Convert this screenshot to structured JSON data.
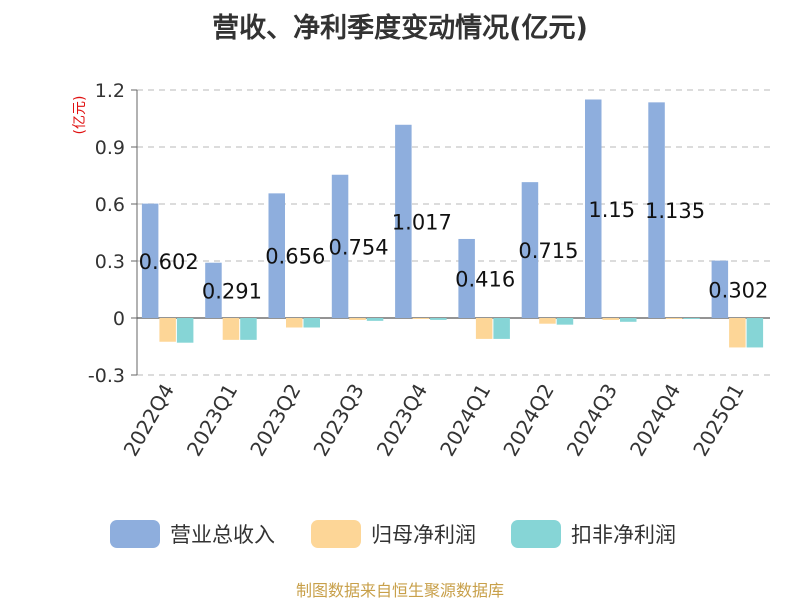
{
  "chart_data": {
    "type": "bar",
    "title": "营收、净利季度变动情况(亿元)",
    "ylabel": "(亿元)",
    "ylim": [
      -0.3,
      1.2
    ],
    "yticks": [
      "1.2",
      "0.9",
      "0.6",
      "0.3",
      "0",
      "-0.3"
    ],
    "ytick_values": [
      1.2,
      0.9,
      0.6,
      0.3,
      0,
      -0.3
    ],
    "categories": [
      "2022Q4",
      "2023Q1",
      "2023Q2",
      "2023Q3",
      "2023Q4",
      "2024Q1",
      "2024Q2",
      "2024Q3",
      "2024Q4",
      "2025Q1"
    ],
    "series": [
      {
        "name": "营业总收入",
        "color": "#8eaedd",
        "values": [
          0.602,
          0.291,
          0.656,
          0.754,
          1.017,
          0.416,
          0.715,
          1.15,
          1.135,
          0.302
        ],
        "labels": [
          "0.602",
          "0.291",
          "0.656",
          "0.754",
          "1.017",
          "0.416",
          "0.715",
          "1.15",
          "1.135",
          "0.302"
        ]
      },
      {
        "name": "归母净利润",
        "color": "#fdd697",
        "values": [
          -0.125,
          -0.115,
          -0.05,
          -0.01,
          -0.005,
          -0.11,
          -0.03,
          -0.01,
          -0.005,
          -0.155
        ]
      },
      {
        "name": "扣非净利润",
        "color": "#86d5d6",
        "values": [
          -0.13,
          -0.115,
          -0.05,
          -0.015,
          -0.01,
          -0.11,
          -0.035,
          -0.02,
          -0.005,
          -0.155
        ]
      }
    ],
    "grid": true,
    "legend_position": "bottom"
  },
  "source": "制图数据来自恒生聚源数据库"
}
